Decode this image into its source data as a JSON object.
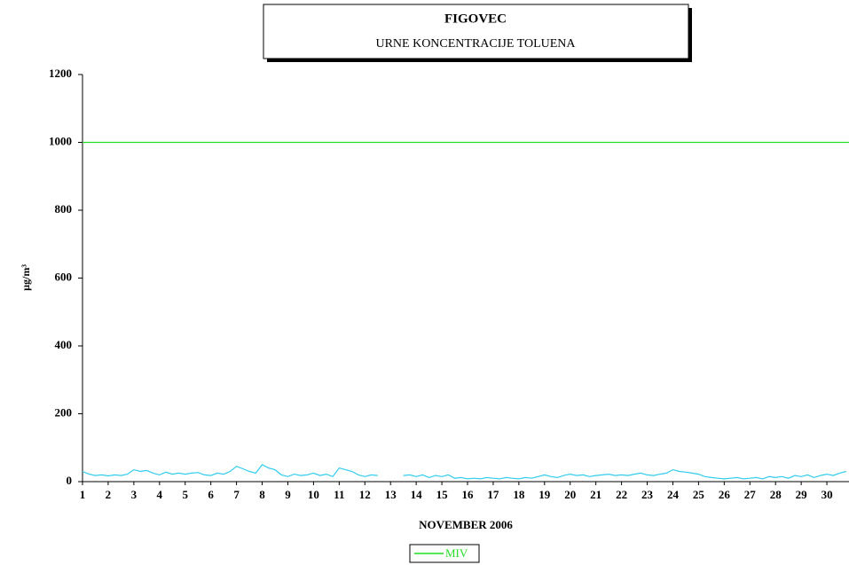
{
  "chart_data": {
    "type": "line",
    "title": "FIGOVEC",
    "subtitle": "URNE KONCENTRACIJE TOLUENA",
    "y_label": "µg/m³",
    "x_label": "NOVEMBER 2006",
    "xlim": [
      1,
      31
    ],
    "xticks": [
      1,
      2,
      3,
      4,
      5,
      6,
      7,
      8,
      9,
      10,
      11,
      12,
      13,
      14,
      15,
      16,
      17,
      18,
      19,
      20,
      21,
      22,
      23,
      24,
      25,
      26,
      27,
      28,
      29,
      30
    ],
    "ylim": [
      0,
      1200
    ],
    "yticks": [
      0,
      200,
      400,
      600,
      800,
      1000,
      1200
    ],
    "series": [
      {
        "color": "#33ccee",
        "x": [
          1,
          1.25,
          1.5,
          1.75,
          2,
          2.25,
          2.5,
          2.75,
          3,
          3.25,
          3.5,
          3.75,
          4,
          4.25,
          4.5,
          4.75,
          5,
          5.25,
          5.5,
          5.75,
          6,
          6.25,
          6.5,
          6.75,
          7,
          7.25,
          7.5,
          7.75,
          8,
          8.25,
          8.5,
          8.75,
          9,
          9.25,
          9.5,
          9.75,
          10,
          10.25,
          10.5,
          10.75,
          11,
          11.25,
          11.5,
          11.75,
          12,
          12.25,
          12.5,
          12.75,
          13,
          13.25,
          13.5,
          13.75,
          14,
          14.25,
          14.5,
          14.75,
          15,
          15.25,
          15.5,
          15.75,
          16,
          16.25,
          16.5,
          16.75,
          17,
          17.25,
          17.5,
          17.75,
          18,
          18.25,
          18.5,
          18.75,
          19,
          19.25,
          19.5,
          19.75,
          20,
          20.25,
          20.5,
          20.75,
          21,
          21.25,
          21.5,
          21.75,
          22,
          22.25,
          22.5,
          22.75,
          23,
          23.25,
          23.5,
          23.75,
          24,
          24.25,
          24.5,
          24.75,
          25,
          25.25,
          25.5,
          25.75,
          26,
          26.25,
          26.5,
          26.75,
          27,
          27.25,
          27.5,
          27.75,
          28,
          28.25,
          28.5,
          28.75,
          29,
          29.25,
          29.5,
          29.75,
          30,
          30.25,
          30.5,
          30.75
        ],
        "values": [
          30,
          22,
          18,
          20,
          17,
          20,
          18,
          22,
          35,
          30,
          33,
          25,
          20,
          28,
          22,
          25,
          22,
          25,
          27,
          20,
          18,
          25,
          22,
          30,
          45,
          38,
          30,
          25,
          50,
          40,
          35,
          20,
          15,
          22,
          18,
          20,
          25,
          18,
          22,
          15,
          40,
          35,
          30,
          20,
          15,
          20,
          18,
          null,
          null,
          null,
          18,
          20,
          15,
          20,
          12,
          18,
          15,
          20,
          10,
          12,
          8,
          10,
          8,
          12,
          10,
          8,
          12,
          10,
          8,
          12,
          10,
          15,
          20,
          15,
          12,
          18,
          22,
          18,
          20,
          15,
          18,
          20,
          22,
          18,
          20,
          18,
          22,
          25,
          20,
          18,
          22,
          25,
          35,
          30,
          28,
          25,
          22,
          15,
          12,
          10,
          8,
          10,
          12,
          8,
          10,
          12,
          8,
          15,
          12,
          15,
          10,
          18,
          15,
          20,
          12,
          18,
          22,
          18,
          25,
          30
        ]
      },
      {
        "name": "MIV",
        "color": "#22dd22",
        "x": [
          1,
          31
        ],
        "values": [
          1000,
          1000
        ]
      }
    ]
  }
}
